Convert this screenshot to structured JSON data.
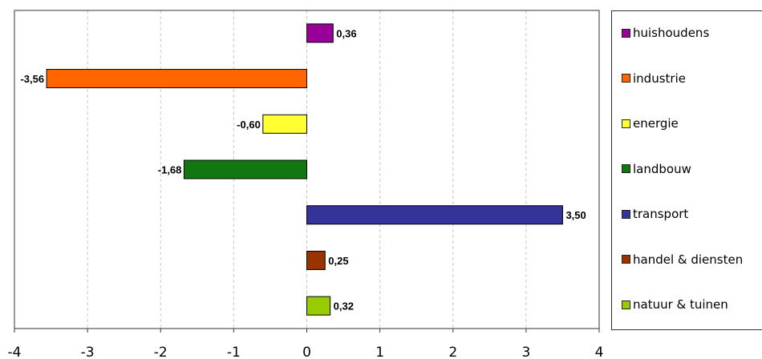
{
  "chart_data": {
    "type": "bar",
    "orientation": "horizontal",
    "categories": [
      "huishoudens",
      "industrie",
      "energie",
      "landbouw",
      "transport",
      "handel & diensten",
      "natuur & tuinen"
    ],
    "values": [
      0.36,
      -3.56,
      -0.6,
      -1.68,
      3.5,
      0.25,
      0.32
    ],
    "value_labels": [
      "0,36",
      "-3,56",
      "-0,60",
      "-1,68",
      "3,50",
      "0,25",
      "0,32"
    ],
    "colors": [
      "#990099",
      "#ff6600",
      "#ffff33",
      "#117711",
      "#333399",
      "#993300",
      "#99cc00"
    ],
    "xlim": [
      -4,
      4
    ],
    "xticks": [
      -4,
      -3,
      -2,
      -1,
      0,
      1,
      2,
      3,
      4
    ],
    "xtick_labels": [
      "-4",
      "-3",
      "-2",
      "-1",
      "0",
      "1",
      "2",
      "3",
      "4"
    ],
    "grid": true,
    "legend_position": "right"
  }
}
